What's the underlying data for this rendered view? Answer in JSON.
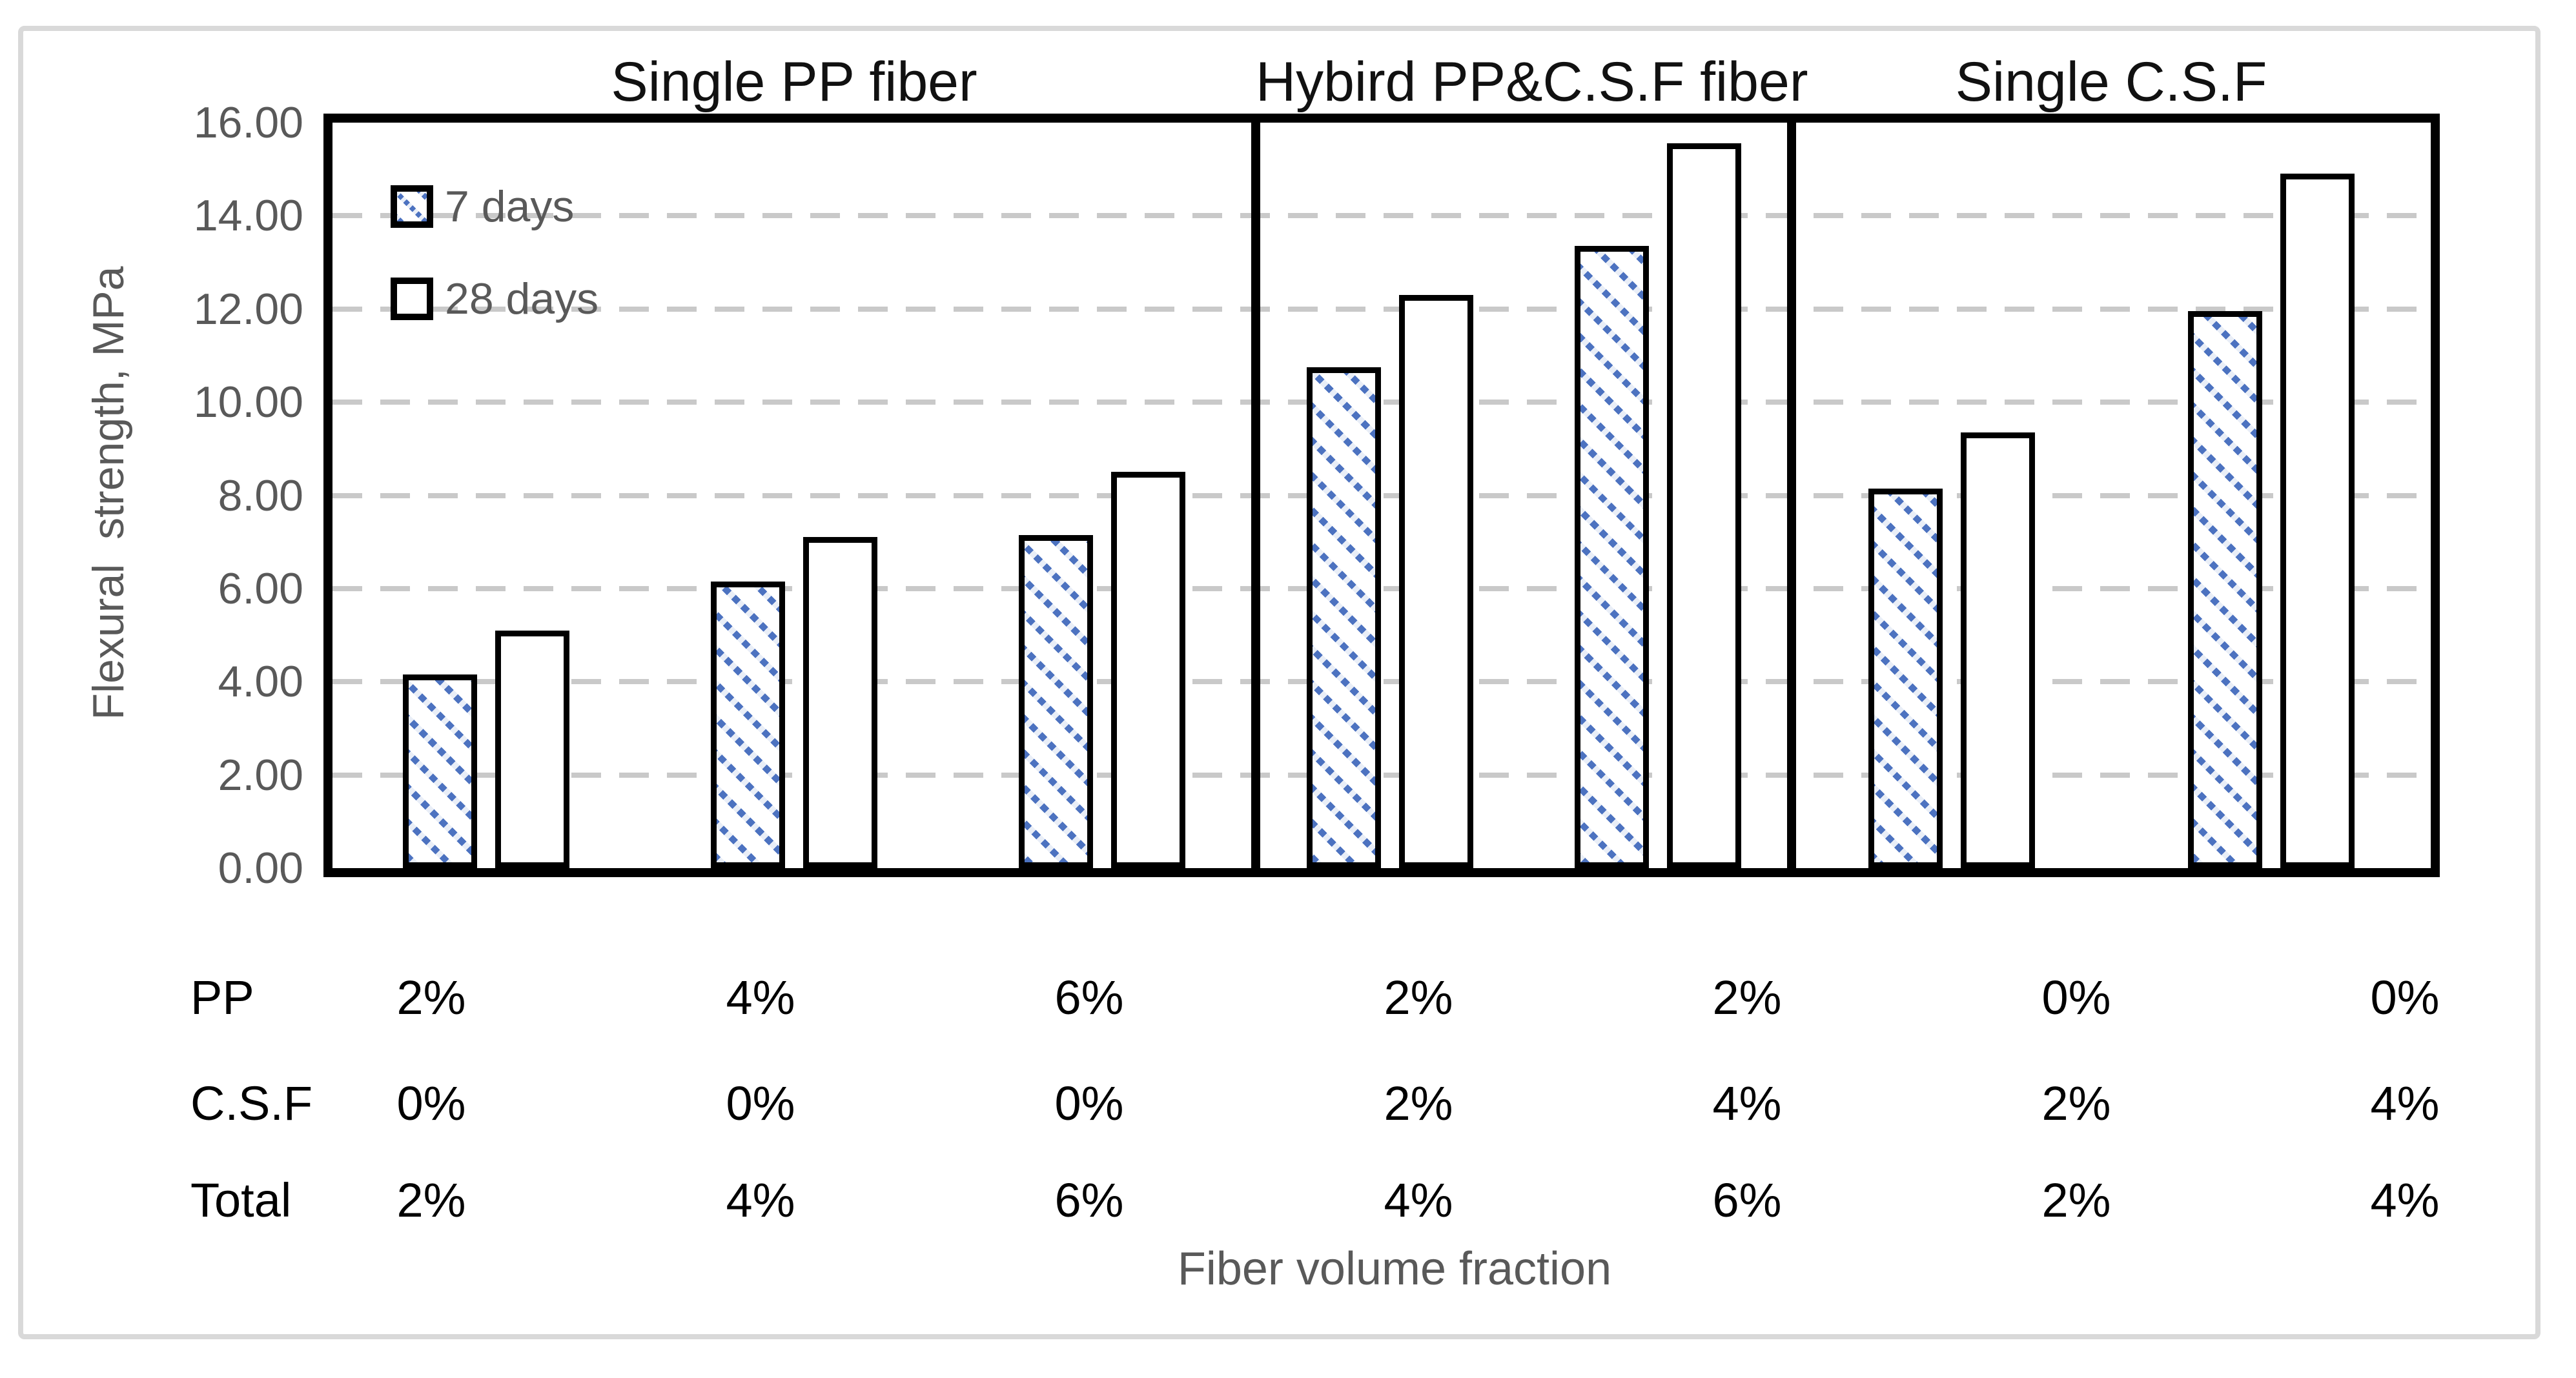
{
  "figure": {
    "y_axis": {
      "title": "Flexural  strength, MPa",
      "tick_labels": [
        "0.00",
        "2.00",
        "4.00",
        "6.00",
        "8.00",
        "10.00",
        "12.00",
        "14.00",
        "16.00"
      ],
      "min": 0,
      "max": 16
    },
    "x_axis": {
      "title": "Fiber volume fraction"
    },
    "legend": [
      {
        "label": "7 days",
        "swatch": "hatched-blue-diagonal"
      },
      {
        "label": "28 days",
        "swatch": "white"
      }
    ],
    "colors": {
      "hatch_blue": "#4c72c0",
      "axis_text_gray": "#595959",
      "gridline_gray": "#c9c9c9",
      "plot_border_black": "#000000",
      "frame_gray": "#d9d9d9"
    }
  },
  "chart_data": {
    "type": "bar",
    "title": "",
    "ylabel": "Flexural strength, MPa",
    "xlabel": "Fiber volume fraction",
    "ylim": [
      0,
      16
    ],
    "gridlines": [
      2,
      4,
      6,
      8,
      10,
      12,
      14
    ],
    "grid": "dashed-horizontal",
    "legend_position": "top-left-inside",
    "series_names": [
      "7 days",
      "28 days"
    ],
    "groups": [
      {
        "title": "Single PP fiber",
        "pairs": [
          {
            "pp": "2%",
            "csf": "0%",
            "total": "2%",
            "d7": 4.15,
            "d28": 5.1
          },
          {
            "pp": "4%",
            "csf": "0%",
            "total": "4%",
            "d7": 6.15,
            "d28": 7.1
          },
          {
            "pp": "6%",
            "csf": "0%",
            "total": "6%",
            "d7": 7.15,
            "d28": 8.5
          }
        ]
      },
      {
        "title": "Hybird PP&C.S.F fiber",
        "pairs": [
          {
            "pp": "2%",
            "csf": "2%",
            "total": "4%",
            "d7": 10.75,
            "d28": 12.3
          },
          {
            "pp": "2%",
            "csf": "4%",
            "total": "6%",
            "d7": 13.35,
            "d28": 15.55
          }
        ]
      },
      {
        "title": "Single C.S.F",
        "pairs": [
          {
            "pp": "0%",
            "csf": "2%",
            "total": "2%",
            "d7": 8.15,
            "d28": 9.35
          },
          {
            "pp": "0%",
            "csf": "4%",
            "total": "4%",
            "d7": 11.95,
            "d28": 14.9
          }
        ]
      }
    ]
  },
  "table": {
    "rows": [
      {
        "label": "PP",
        "values": [
          "2%",
          "4%",
          "6%",
          "2%",
          "2%",
          "0%",
          "0%"
        ]
      },
      {
        "label": "C.S.F",
        "values": [
          "0%",
          "0%",
          "0%",
          "2%",
          "4%",
          "2%",
          "4%"
        ]
      },
      {
        "label": "Total",
        "values": [
          "2%",
          "4%",
          "6%",
          "4%",
          "6%",
          "2%",
          "4%"
        ]
      }
    ]
  }
}
